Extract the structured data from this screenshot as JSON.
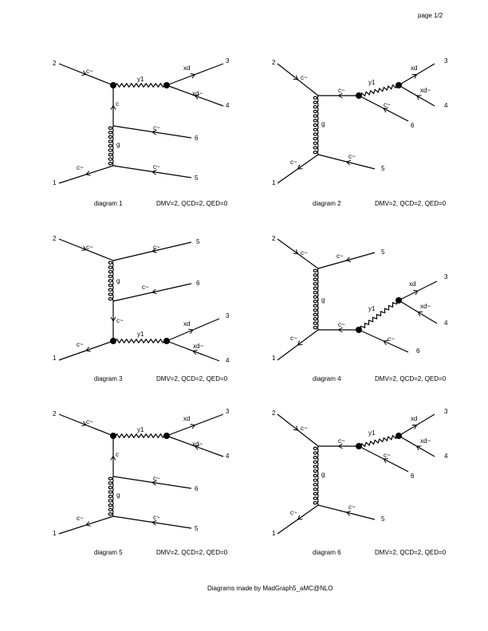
{
  "page_label": "page 1/2",
  "footer": "Diagrams made by MadGraph5_aMC@NLO",
  "diagrams": [
    {
      "caption": "diagram 1",
      "orders": "DMV=2, QCD=2, QED=0",
      "external_labels": [
        "1",
        "2",
        "3",
        "4",
        "5",
        "6"
      ],
      "particle_labels": [
        "c~",
        "y1",
        "xd",
        "xd~",
        "c",
        "c~",
        "g",
        "c~",
        "c~"
      ]
    },
    {
      "caption": "diagram 2",
      "orders": "DMV=2, QCD=2, QED=0",
      "external_labels": [
        "1",
        "2",
        "3",
        "4",
        "5",
        "6"
      ],
      "particle_labels": [
        "c~",
        "c~",
        "y1",
        "xd",
        "xd~",
        "c~",
        "g",
        "c~",
        "c~"
      ]
    },
    {
      "caption": "diagram 3",
      "orders": "DMV=2, QCD=2, QED=0",
      "external_labels": [
        "1",
        "2",
        "3",
        "4",
        "5",
        "6"
      ],
      "particle_labels": [
        "c~",
        "c~",
        "g",
        "c~",
        "c~",
        "y1",
        "xd",
        "xd~",
        "c~"
      ]
    },
    {
      "caption": "diagram 4",
      "orders": "DMV=2, QCD=2, QED=0",
      "external_labels": [
        "1",
        "2",
        "3",
        "4",
        "5",
        "6"
      ],
      "particle_labels": [
        "c~",
        "c~",
        "g",
        "xd",
        "xd~",
        "y1",
        "c~",
        "c~",
        "c~"
      ]
    },
    {
      "caption": "diagram 5",
      "orders": "DMV=2, QCD=2, QED=0",
      "external_labels": [
        "1",
        "2",
        "3",
        "4",
        "5",
        "6"
      ],
      "particle_labels": [
        "c~",
        "y1",
        "xd",
        "xd~",
        "c",
        "c~",
        "g",
        "c~",
        "c~"
      ]
    },
    {
      "caption": "diagram 6",
      "orders": "DMV=2, QCD=2, QED=0",
      "external_labels": [
        "1",
        "2",
        "3",
        "4",
        "5",
        "6"
      ],
      "particle_labels": [
        "c~",
        "c~",
        "y1",
        "xd",
        "xd~",
        "c~",
        "g",
        "c~",
        "c~"
      ]
    }
  ]
}
